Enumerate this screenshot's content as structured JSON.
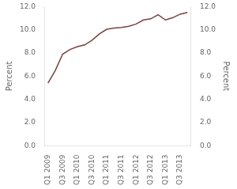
{
  "chart_data": {
    "type": "line",
    "categories": [
      "Q1 2009",
      null,
      "Q3 2009",
      null,
      "Q1 2010",
      null,
      "Q3 2010",
      null,
      "Q1 2011",
      null,
      "Q3 2011",
      null,
      "Q1 2012",
      null,
      "Q3 2012",
      null,
      "Q1 2013",
      null,
      "Q3 2013",
      null
    ],
    "values": [
      5.4,
      6.5,
      7.9,
      8.3,
      8.55,
      8.7,
      9.1,
      9.65,
      10.05,
      10.15,
      10.2,
      10.3,
      10.5,
      10.85,
      10.95,
      11.3,
      10.85,
      11.05,
      11.35,
      11.5
    ],
    "color": "#7B4040",
    "ylim": [
      0.0,
      12.0
    ],
    "yticks": [
      {
        "value": 0,
        "label": "0.0"
      },
      {
        "value": 2,
        "label": "2.0"
      },
      {
        "value": 4,
        "label": "4.0"
      },
      {
        "value": 6,
        "label": "6.0"
      },
      {
        "value": 8,
        "label": "8.0"
      },
      {
        "value": 10,
        "label": "10.0"
      },
      {
        "value": 12,
        "label": "12.0"
      }
    ],
    "y2lim": [
      0.0,
      12.0
    ],
    "y2ticks": [
      {
        "value": 0,
        "label": "0.0"
      },
      {
        "value": 2,
        "label": "2.0"
      },
      {
        "value": 4,
        "label": "4.0"
      },
      {
        "value": 6,
        "label": "6.0"
      },
      {
        "value": 8,
        "label": "8.0"
      },
      {
        "value": 10,
        "label": "10.0"
      },
      {
        "value": 12,
        "label": "12.0"
      }
    ],
    "ylabel": "Percent",
    "y2label": "Percent",
    "grid": false
  }
}
